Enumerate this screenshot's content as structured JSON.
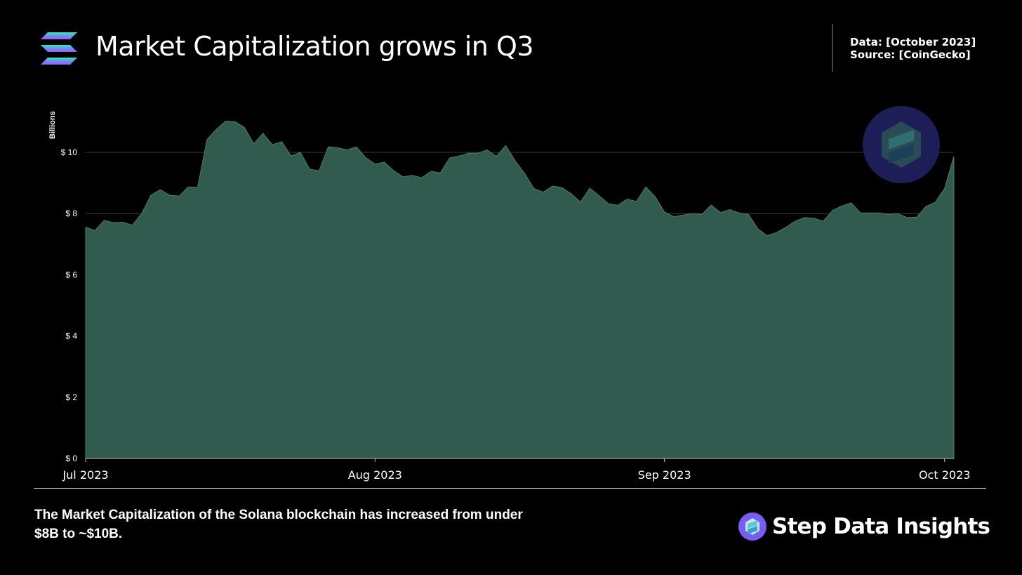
{
  "header": {
    "title": "Market Capitalization grows in Q3",
    "data_line": "Data: [October 2023]",
    "source_line": "Source: [CoinGecko]"
  },
  "footer": {
    "caption": "The Market Capitalization of the Solana blockchain has increased from under $8B to ~$10B.",
    "brand_name": "Step Data Insights"
  },
  "colors": {
    "background": "#000000",
    "area_fill": "#325b50",
    "area_stroke": "#4a7f70",
    "grid": "#3a3a3a",
    "logo_gradient": [
      "#14f195",
      "#9945ff"
    ],
    "brand_icon": "#7b5cf0"
  },
  "icons": {
    "header_logo": "solana-logo-icon",
    "watermark": "step-watermark-icon",
    "brand": "step-brand-icon"
  },
  "chart_data": {
    "type": "area",
    "ylabel": "Billions",
    "ylim": [
      0,
      11
    ],
    "y_ticks": [
      0,
      2,
      4,
      6,
      8,
      10
    ],
    "y_tick_labels": [
      "$ 0",
      "$ 2",
      "$ 4",
      "$ 6",
      "$ 8",
      "$ 10"
    ],
    "x_ticks": [
      "2023-07-01",
      "2023-08-01",
      "2023-09-01",
      "2023-10-01"
    ],
    "x_tick_labels": [
      "Jul 2023",
      "Aug 2023",
      "Sep 2023",
      "Oct 2023"
    ],
    "grid": "horizontal",
    "legend": "none",
    "x_start": "2023-07-01",
    "values": [
      7.55,
      7.45,
      7.78,
      7.7,
      7.72,
      7.62,
      8.0,
      8.6,
      8.78,
      8.6,
      8.57,
      8.87,
      8.86,
      10.42,
      10.75,
      11.02,
      11.0,
      10.82,
      10.28,
      10.62,
      10.25,
      10.35,
      9.88,
      10.0,
      9.45,
      9.4,
      10.18,
      10.15,
      10.08,
      10.18,
      9.83,
      9.62,
      9.68,
      9.4,
      9.2,
      9.25,
      9.17,
      9.38,
      9.33,
      9.82,
      9.88,
      9.97,
      9.97,
      10.08,
      9.87,
      10.22,
      9.73,
      9.32,
      8.82,
      8.7,
      8.9,
      8.85,
      8.65,
      8.38,
      8.83,
      8.58,
      8.32,
      8.27,
      8.47,
      8.4,
      8.87,
      8.55,
      8.05,
      7.9,
      7.95,
      8.0,
      7.97,
      8.28,
      8.03,
      8.13,
      8.02,
      7.97,
      7.5,
      7.28,
      7.38,
      7.55,
      7.75,
      7.87,
      7.85,
      7.75,
      8.1,
      8.25,
      8.35,
      8.02,
      8.02,
      8.02,
      7.97,
      8.0,
      7.87,
      7.88,
      8.23,
      8.37,
      8.82,
      9.87
    ]
  }
}
